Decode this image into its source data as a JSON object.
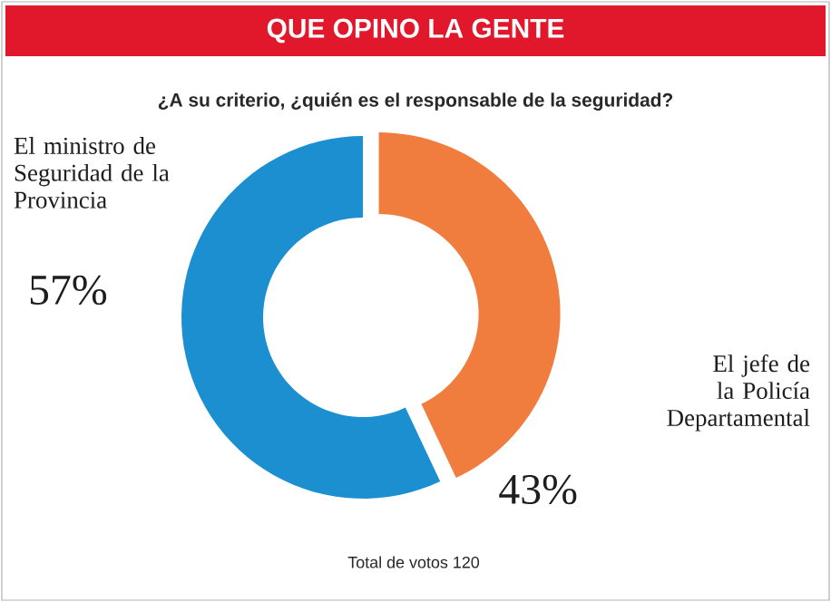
{
  "chart_data": {
    "type": "donut",
    "title": "QUE OPINO LA GENTE",
    "subtitle": "¿A su criterio, ¿quién es el responsable de la seguridad?",
    "categories": [
      "El ministro de Seguridad de la Provincia",
      "El jefe de la Policía Departamental"
    ],
    "values": [
      57,
      43
    ],
    "value_labels": [
      "57%",
      "43%"
    ],
    "colors": [
      "#1b8fcf",
      "#f07c3e"
    ],
    "annotations": [
      "Total de votos 120"
    ]
  }
}
